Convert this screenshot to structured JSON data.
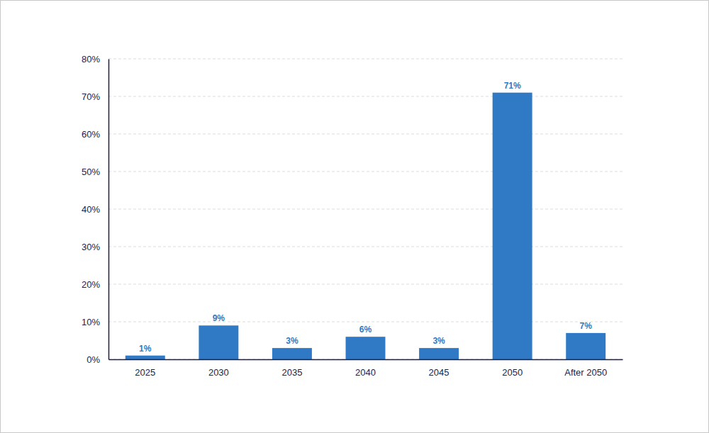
{
  "chart_data": {
    "type": "bar",
    "categories": [
      "2025",
      "2030",
      "2035",
      "2040",
      "2045",
      "2050",
      "After 2050"
    ],
    "values": [
      1,
      9,
      3,
      6,
      3,
      71,
      7
    ],
    "value_labels": [
      "1%",
      "9%",
      "3%",
      "6%",
      "3%",
      "71%",
      "7%"
    ],
    "data_labels": true,
    "color": "#2f79c5",
    "ylim": [
      0,
      80
    ],
    "yticks": [
      {
        "value": 0,
        "label": "0%"
      },
      {
        "value": 10,
        "label": "10%"
      },
      {
        "value": 20,
        "label": "20%"
      },
      {
        "value": 30,
        "label": "30%"
      },
      {
        "value": 40,
        "label": "40%"
      },
      {
        "value": 50,
        "label": "50%"
      },
      {
        "value": 60,
        "label": "60%"
      },
      {
        "value": 70,
        "label": "70%"
      },
      {
        "value": 80,
        "label": "80%"
      }
    ],
    "grid": true
  }
}
